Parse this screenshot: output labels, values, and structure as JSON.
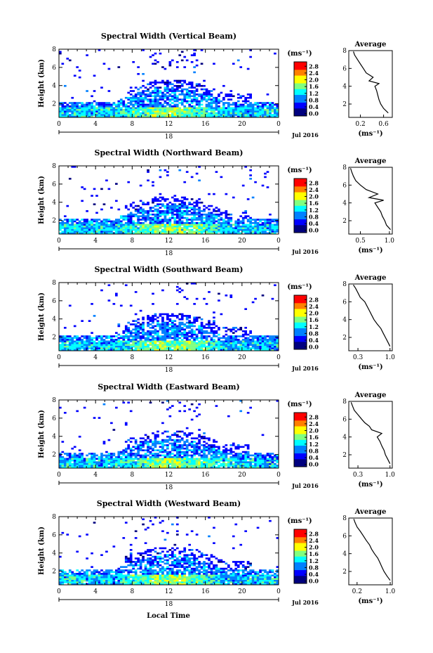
{
  "figure": {
    "xlabel": "Local Time",
    "x_ticks": [
      "0",
      "4",
      "8",
      "12",
      "16",
      "20",
      "0"
    ],
    "date_day": "18",
    "date_label": "Jul 2016",
    "ylabel": "Height (km)",
    "y_ticks": [
      "2",
      "4",
      "6",
      "8"
    ],
    "colorbar_unit": "(ms⁻¹)",
    "colorbar_ticks": [
      "0.0",
      "0.4",
      "0.8",
      "1.2",
      "1.6",
      "2.0",
      "2.4",
      "2.8"
    ],
    "avg_title": "Average",
    "avg_unit": "(ms⁻¹)",
    "colormap": [
      "#00007f",
      "#0000ff",
      "#0080ff",
      "#00ffff",
      "#80ff80",
      "#ffff00",
      "#ff8000",
      "#ff0000"
    ]
  },
  "chart_data": [
    {
      "type": "heatmap",
      "title": "Spectral Width (Vertical Beam)",
      "x_range_hours": [
        0,
        24
      ],
      "y_range_km": [
        0.5,
        8
      ],
      "color_range": [
        0.0,
        2.8
      ],
      "avg_profile": {
        "type": "line",
        "x_ticks": [
          "0.2",
          "0.6"
        ],
        "xlim": [
          0.0,
          0.75
        ],
        "ylim": [
          0.5,
          8
        ],
        "points": [
          [
            0.68,
            1.0
          ],
          [
            0.6,
            1.5
          ],
          [
            0.55,
            2.0
          ],
          [
            0.52,
            2.5
          ],
          [
            0.5,
            3.0
          ],
          [
            0.48,
            3.5
          ],
          [
            0.45,
            4.0
          ],
          [
            0.52,
            4.3
          ],
          [
            0.35,
            4.6
          ],
          [
            0.42,
            5.0
          ],
          [
            0.3,
            5.5
          ],
          [
            0.25,
            6.0
          ],
          [
            0.2,
            6.5
          ],
          [
            0.15,
            7.0
          ],
          [
            0.1,
            7.5
          ],
          [
            0.08,
            7.9
          ]
        ]
      }
    },
    {
      "type": "heatmap",
      "title": "Spectral Width (Northward Beam)",
      "x_range_hours": [
        0,
        24
      ],
      "y_range_km": [
        0.5,
        8
      ],
      "color_range": [
        0.0,
        2.8
      ],
      "avg_profile": {
        "type": "line",
        "x_ticks": [
          "0.5",
          "1.0"
        ],
        "xlim": [
          0.3,
          1.05
        ],
        "ylim": [
          0.5,
          8
        ],
        "points": [
          [
            1.02,
            1.0
          ],
          [
            0.95,
            1.5
          ],
          [
            0.92,
            2.0
          ],
          [
            0.88,
            2.5
          ],
          [
            0.85,
            3.0
          ],
          [
            0.8,
            3.5
          ],
          [
            0.75,
            4.0
          ],
          [
            0.9,
            4.3
          ],
          [
            0.65,
            4.6
          ],
          [
            0.8,
            5.0
          ],
          [
            0.6,
            5.5
          ],
          [
            0.5,
            6.0
          ],
          [
            0.42,
            6.5
          ],
          [
            0.38,
            7.0
          ],
          [
            0.35,
            7.5
          ],
          [
            0.33,
            7.9
          ]
        ]
      }
    },
    {
      "type": "heatmap",
      "title": "Spectral Width (Southward Beam)",
      "x_range_hours": [
        0,
        24
      ],
      "y_range_km": [
        0.5,
        8
      ],
      "color_range": [
        0.0,
        2.8
      ],
      "avg_profile": {
        "type": "line",
        "x_ticks": [
          "0.3",
          "1.0"
        ],
        "xlim": [
          0.1,
          1.05
        ],
        "ylim": [
          0.5,
          8
        ],
        "points": [
          [
            1.0,
            1.0
          ],
          [
            0.95,
            1.5
          ],
          [
            0.9,
            2.0
          ],
          [
            0.85,
            2.5
          ],
          [
            0.8,
            3.0
          ],
          [
            0.72,
            3.5
          ],
          [
            0.65,
            4.0
          ],
          [
            0.6,
            4.5
          ],
          [
            0.55,
            5.0
          ],
          [
            0.5,
            5.5
          ],
          [
            0.45,
            6.0
          ],
          [
            0.35,
            6.5
          ],
          [
            0.3,
            7.0
          ],
          [
            0.25,
            7.5
          ],
          [
            0.2,
            7.9
          ]
        ]
      }
    },
    {
      "type": "heatmap",
      "title": "Spectral Width (Eastward Beam)",
      "x_range_hours": [
        0,
        24
      ],
      "y_range_km": [
        0.5,
        8
      ],
      "color_range": [
        0.0,
        2.8
      ],
      "avg_profile": {
        "type": "line",
        "x_ticks": [
          "0.3",
          "1.0"
        ],
        "xlim": [
          0.1,
          1.05
        ],
        "ylim": [
          0.5,
          8
        ],
        "points": [
          [
            1.0,
            1.0
          ],
          [
            0.95,
            1.5
          ],
          [
            0.9,
            2.0
          ],
          [
            0.87,
            2.5
          ],
          [
            0.82,
            3.0
          ],
          [
            0.78,
            3.5
          ],
          [
            0.72,
            4.0
          ],
          [
            0.82,
            4.4
          ],
          [
            0.6,
            4.8
          ],
          [
            0.55,
            5.2
          ],
          [
            0.45,
            5.6
          ],
          [
            0.38,
            6.0
          ],
          [
            0.3,
            6.5
          ],
          [
            0.22,
            7.0
          ],
          [
            0.18,
            7.5
          ],
          [
            0.15,
            7.9
          ]
        ]
      }
    },
    {
      "type": "heatmap",
      "title": "Spectral Width (Westward Beam)",
      "x_range_hours": [
        0,
        24
      ],
      "y_range_km": [
        0.5,
        8
      ],
      "color_range": [
        0.0,
        2.8
      ],
      "avg_profile": {
        "type": "line",
        "x_ticks": [
          "0.2",
          "1.0"
        ],
        "xlim": [
          0.0,
          1.05
        ],
        "ylim": [
          0.5,
          8
        ],
        "points": [
          [
            1.0,
            1.0
          ],
          [
            0.92,
            1.5
          ],
          [
            0.85,
            2.0
          ],
          [
            0.8,
            2.5
          ],
          [
            0.75,
            3.0
          ],
          [
            0.7,
            3.5
          ],
          [
            0.62,
            4.0
          ],
          [
            0.55,
            4.5
          ],
          [
            0.5,
            5.0
          ],
          [
            0.42,
            5.5
          ],
          [
            0.35,
            6.0
          ],
          [
            0.28,
            6.5
          ],
          [
            0.2,
            7.0
          ],
          [
            0.15,
            7.5
          ],
          [
            0.12,
            7.9
          ]
        ]
      }
    }
  ]
}
